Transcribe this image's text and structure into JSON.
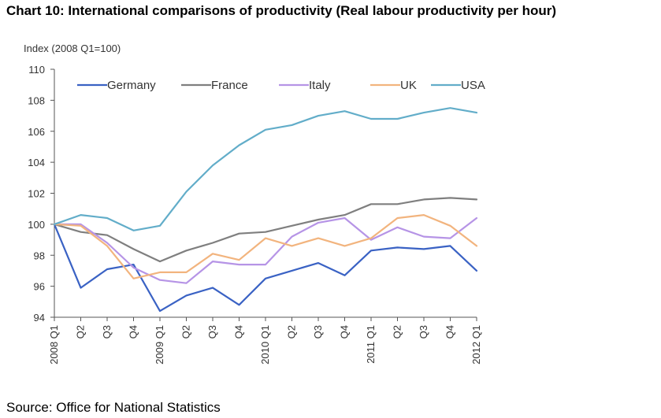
{
  "chart_data": {
    "type": "line",
    "title": "Chart 10: International comparisons of productivity (Real labour productivity per hour)",
    "ylabel": "Index (2008  Q1=100)",
    "xlabel": "",
    "ylim": [
      94,
      110
    ],
    "yticks": [
      94,
      96,
      98,
      100,
      102,
      104,
      106,
      108,
      110
    ],
    "grid": false,
    "legend_position": "top",
    "categories": [
      "2008 Q1",
      "Q2",
      "Q3",
      "Q4",
      "2009 Q1",
      "Q2",
      "Q3",
      "Q4",
      "2010 Q1",
      "Q2",
      "Q3",
      "Q4",
      "2011 Q1",
      "Q2",
      "Q3",
      "Q4",
      "2012 Q1"
    ],
    "series": [
      {
        "name": "Germany",
        "color": "#3a62c4",
        "values": [
          100,
          95.9,
          97.1,
          97.4,
          94.4,
          95.4,
          95.9,
          94.8,
          96.5,
          97.0,
          97.5,
          96.7,
          98.3,
          98.5,
          98.4,
          98.6,
          97.0
        ]
      },
      {
        "name": "France",
        "color": "#7f7f7f",
        "values": [
          100,
          99.5,
          99.3,
          98.4,
          97.6,
          98.3,
          98.8,
          99.4,
          99.5,
          99.9,
          100.3,
          100.6,
          101.3,
          101.3,
          101.6,
          101.7,
          101.6
        ]
      },
      {
        "name": "Italy",
        "color": "#b694e6",
        "values": [
          100,
          100.0,
          98.8,
          97.2,
          96.4,
          96.2,
          97.6,
          97.4,
          97.4,
          99.2,
          100.1,
          100.4,
          99.0,
          99.8,
          99.2,
          99.1,
          100.4
        ]
      },
      {
        "name": "UK",
        "color": "#f2b47e",
        "values": [
          100,
          99.9,
          98.6,
          96.5,
          96.9,
          96.9,
          98.1,
          97.7,
          99.1,
          98.6,
          99.1,
          98.6,
          99.1,
          100.4,
          100.6,
          99.9,
          98.6
        ]
      },
      {
        "name": "USA",
        "color": "#62adc9",
        "values": [
          100,
          100.6,
          100.4,
          99.6,
          99.9,
          102.1,
          103.8,
          105.1,
          106.1,
          106.4,
          107.0,
          107.3,
          106.8,
          106.8,
          107.2,
          107.5,
          107.2
        ]
      }
    ],
    "source": "Source: Office for National Statistics"
  }
}
